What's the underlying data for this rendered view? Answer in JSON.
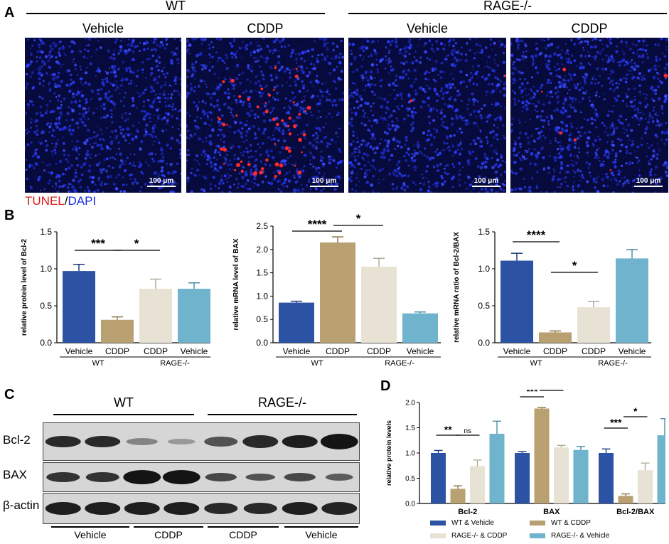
{
  "panelA": {
    "letter": "A",
    "groups": [
      "WT",
      "RAGE-/-"
    ],
    "columns": [
      "Vehicle",
      "CDDP",
      "Vehicle",
      "CDDP"
    ],
    "scale_label": "100 μm",
    "stain_label_1": "TUNEL",
    "stain_sep": "/",
    "stain_label_2": "DAPI",
    "tunel_color": "#ff2020",
    "dapi_color": "#2a3cff"
  },
  "panelB": {
    "letter": "B"
  },
  "panelC": {
    "letter": "C",
    "groups": [
      "WT",
      "RAGE-/-"
    ],
    "rows": [
      "Bcl-2",
      "BAX",
      "β-actin"
    ],
    "bottom": [
      "Vehicle",
      "CDDP",
      "CDDP",
      "Vehicle"
    ]
  },
  "panelD": {
    "letter": "D"
  },
  "colors": {
    "wt_vehicle": "#2b52a3",
    "wt_cddp": "#b9a071",
    "rage_cddp": "#e8e2d4",
    "rage_vehicle": "#6fb3cc"
  },
  "chart_data": [
    {
      "type": "bar",
      "panel": "B1",
      "ylabel": "relative protein level of Bcl-2",
      "categories": [
        "Vehicle",
        "CDDP",
        "CDDP",
        "Vehicle"
      ],
      "group_labels": [
        "WT",
        "RAGE-/-"
      ],
      "values": [
        0.97,
        0.31,
        0.73,
        0.73
      ],
      "errors": [
        0.09,
        0.04,
        0.13,
        0.08
      ],
      "ylim": [
        0,
        1.5
      ],
      "yticks": [
        "0.0",
        "0.5",
        "1.0",
        "1.5"
      ],
      "significance": [
        {
          "from": 0,
          "to": 1,
          "label": "***"
        },
        {
          "from": 1,
          "to": 2,
          "label": "*"
        }
      ]
    },
    {
      "type": "bar",
      "panel": "B2",
      "ylabel": "relative mRNA level of BAX",
      "categories": [
        "Vehicle",
        "CDDP",
        "CDDP",
        "Vehicle"
      ],
      "group_labels": [
        "WT",
        "RAGE-/-"
      ],
      "values": [
        0.86,
        2.15,
        1.63,
        0.63
      ],
      "errors": [
        0.03,
        0.12,
        0.18,
        0.03
      ],
      "ylim": [
        0,
        2.5
      ],
      "yticks": [
        "0.0",
        "0.5",
        "1.0",
        "1.5",
        "2.0",
        "2.5"
      ],
      "significance": [
        {
          "from": 0,
          "to": 1,
          "label": "****"
        },
        {
          "from": 1,
          "to": 2,
          "label": "*"
        }
      ]
    },
    {
      "type": "bar",
      "panel": "B3",
      "ylabel": "relative mRNA ratio of Bcl-2/BAX",
      "categories": [
        "Vehicle",
        "CDDP",
        "CDDP",
        "Vehicle"
      ],
      "group_labels": [
        "WT",
        "RAGE-/-"
      ],
      "values": [
        1.11,
        0.14,
        0.48,
        1.14
      ],
      "errors": [
        0.1,
        0.02,
        0.08,
        0.12
      ],
      "ylim": [
        0,
        1.5
      ],
      "yticks": [
        "0.0",
        "0.5",
        "1.0",
        "1.5"
      ],
      "significance": [
        {
          "from": 0,
          "to": 1,
          "label": "****"
        },
        {
          "from": 1,
          "to": 2,
          "label": "*"
        }
      ]
    },
    {
      "type": "bar",
      "panel": "D",
      "ylabel": "relative protein levels",
      "categories": [
        "Bcl-2",
        "BAX",
        "Bcl-2/BAX"
      ],
      "ylim": [
        0,
        2.0
      ],
      "yticks": [
        "0.0",
        "0.5",
        "1.0",
        "1.5",
        "2.0"
      ],
      "series": [
        {
          "name": "WT & Vehicle",
          "values": [
            1.0,
            1.0,
            1.0
          ],
          "errors": [
            0.05,
            0.03,
            0.08
          ]
        },
        {
          "name": "WT & CDDP",
          "values": [
            0.29,
            1.88,
            0.15
          ],
          "errors": [
            0.06,
            0.02,
            0.04
          ]
        },
        {
          "name": "RAGE-/- & CDDP",
          "values": [
            0.74,
            1.11,
            0.66
          ],
          "errors": [
            0.12,
            0.04,
            0.14
          ]
        },
        {
          "name": "RAGE-/- & Vehicle",
          "values": [
            1.38,
            1.06,
            1.35
          ],
          "errors": [
            0.25,
            0.07,
            0.33
          ]
        }
      ],
      "significance": [
        {
          "group": 0,
          "from": 0,
          "to": 1,
          "label": "**"
        },
        {
          "group": 0,
          "from": 1,
          "to": 2,
          "label": "ns"
        },
        {
          "group": 1,
          "from": 0,
          "to": 1,
          "label": "***"
        },
        {
          "group": 1,
          "from": 1,
          "to": 2,
          "label": "**"
        },
        {
          "group": 2,
          "from": 0,
          "to": 1,
          "label": "***"
        },
        {
          "group": 2,
          "from": 1,
          "to": 2,
          "label": "*"
        }
      ]
    }
  ]
}
